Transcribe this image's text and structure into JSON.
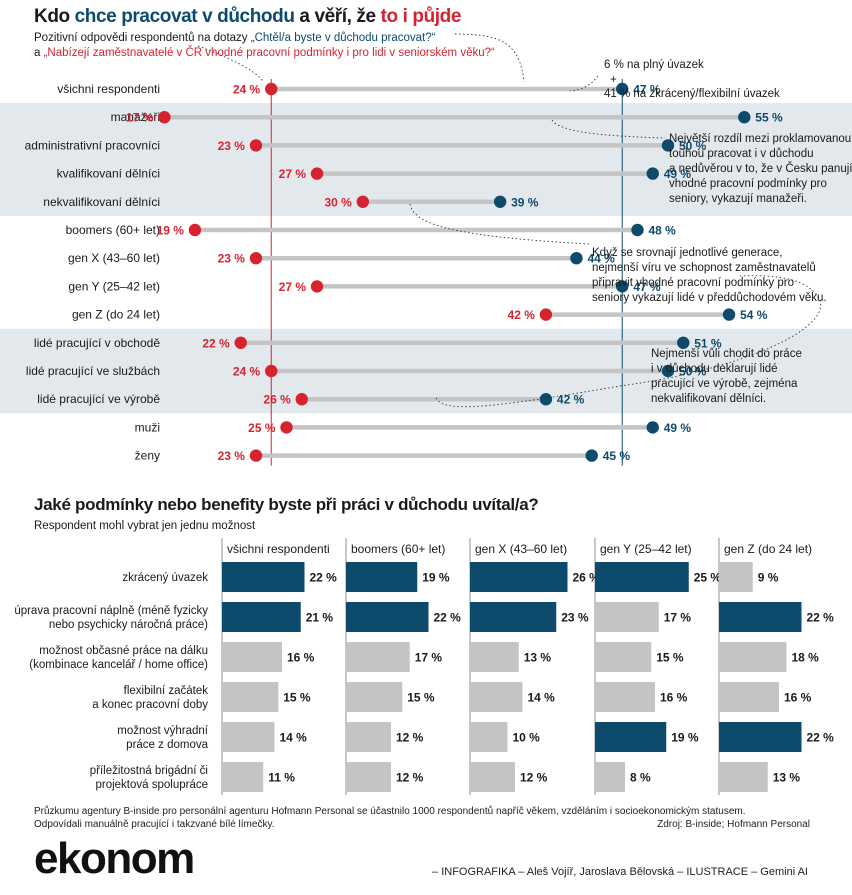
{
  "header": {
    "title_parts": [
      "Kdo ",
      "chce pracovat v důchodu",
      " a věří, že ",
      "to i půjde"
    ],
    "subtitle_line1_prefix": "Pozitivní odpovědi respondentů na dotazy ",
    "subtitle_q1": "„Chtěl/a byste v důchodu pracovat?“",
    "subtitle_line2_prefix": "a ",
    "subtitle_q2": "„Nabízejí zaměstnavatelé v ČR vhodné pracovní podmínky i pro lidi v seniorském věku?“"
  },
  "annotations": {
    "fulltime": [
      "6 % na plný úvazek",
      "+",
      "41 % na zkrácený/flexibilní úvazek"
    ],
    "managers": [
      "Největší rozdíl mezi proklamovanou",
      "touhou pracovat i v důchodu",
      "a nedůvěrou v to, že v Česku panují",
      "vhodné pracovní podmínky pro",
      "seniory, vykazují manažeři."
    ],
    "generations": [
      "Když se srovnají jednotlivé generace,",
      "nejmenší víru ve schopnost zaměstnavatelů",
      "připravit vhodné pracovní podmínky pro",
      "seniory vykazují lidé v předdůchodovém věku."
    ],
    "production": [
      "Nejmenší vůli chodit do práce",
      "i v důchodu deklarují lidé",
      "pracující ve výrobě, zejména",
      "nekvalifikovaní dělníci."
    ]
  },
  "colors": {
    "blue": "#0d4a6b",
    "red": "#d6232f",
    "grey": "#c4c4c4",
    "band": "#e3e8ec"
  },
  "chart_data": [
    {
      "type": "dumbbell",
      "title": "Kdo chce pracovat v důchodu a věří, že to i půjde",
      "unit": "%",
      "series_names": [
        "Nabízejí zaměstnavatelé vhodné podmínky (ano)",
        "Chtěl/a byste v důchodu pracovat (ano)"
      ],
      "rows": [
        {
          "label": "všichni respondenti",
          "red": 24,
          "blue": 47
        },
        {
          "label": "manažeři",
          "red": 17,
          "blue": 55
        },
        {
          "label": "administrativní pracovníci",
          "red": 23,
          "blue": 50
        },
        {
          "label": "kvalifikovaní dělníci",
          "red": 27,
          "blue": 49
        },
        {
          "label": "nekvalifikovaní dělníci",
          "red": 30,
          "blue": 39
        },
        {
          "label": "boomers (60+ let)",
          "red": 19,
          "blue": 48
        },
        {
          "label": "gen X (43–60 let)",
          "red": 23,
          "blue": 44
        },
        {
          "label": "gen Y (25–42 let)",
          "red": 27,
          "blue": 47
        },
        {
          "label": "gen Z (do 24 let)",
          "red": 42,
          "blue": 54
        },
        {
          "label": "lidé pracující v obchodě",
          "red": 22,
          "blue": 51
        },
        {
          "label": "lidé pracující ve službách",
          "red": 24,
          "blue": 50
        },
        {
          "label": "lidé pracující ve výrobě",
          "red": 26,
          "blue": 42
        },
        {
          "label": "muži",
          "red": 25,
          "blue": 49
        },
        {
          "label": "ženy",
          "red": 23,
          "blue": 45
        }
      ]
    },
    {
      "type": "bar",
      "title": "Jaké podmínky nebo benefity byste při práci v důchodu uvítal/a?",
      "subtitle": "Respondent mohl vybrat jen jednu možnost",
      "unit": "%",
      "categories": [
        "zkrácený úvazek",
        "úprava pracovní náplně (méně fyzicky nebo psychicky náročná práce)",
        "možnost občasné práce na dálku (kombinace kancelář / home office)",
        "flexibilní začátek a konec pracovní doby",
        "možnost výhradní práce z domova",
        "příležitostná brigádní či projektová spolupráce"
      ],
      "category_lines": [
        [
          "zkrácený úvazek"
        ],
        [
          "úprava pracovní náplně (méně fyzicky",
          "nebo psychicky náročná práce)"
        ],
        [
          "možnost občasné práce na dálku",
          "(kombinace kancelář / home office)"
        ],
        [
          "flexibilní začátek",
          "a konec pracovní doby"
        ],
        [
          "možnost výhradní",
          "práce z domova"
        ],
        [
          "příležitostná brigádní či",
          "projektová spolupráce"
        ]
      ],
      "series": [
        {
          "name": "všichni respondenti",
          "values": [
            22,
            21,
            16,
            15,
            14,
            11
          ],
          "highlight": [
            true,
            true,
            false,
            false,
            false,
            false
          ]
        },
        {
          "name": "boomers (60+ let)",
          "values": [
            19,
            22,
            17,
            15,
            12,
            12
          ],
          "highlight": [
            true,
            true,
            false,
            false,
            false,
            false
          ]
        },
        {
          "name": "gen X (43–60 let)",
          "values": [
            26,
            23,
            13,
            14,
            10,
            12
          ],
          "highlight": [
            true,
            true,
            false,
            false,
            false,
            false
          ]
        },
        {
          "name": "gen Y (25–42 let)",
          "values": [
            25,
            17,
            15,
            16,
            19,
            8
          ],
          "highlight": [
            true,
            false,
            false,
            false,
            true,
            false
          ]
        },
        {
          "name": "gen Z (do 24 let)",
          "values": [
            9,
            22,
            18,
            16,
            22,
            13
          ],
          "highlight": [
            false,
            true,
            false,
            false,
            true,
            false
          ]
        }
      ]
    }
  ],
  "footer": {
    "note_line1": "Průzkumu agentury B-inside pro personální agenturu Hofmann Personal se účastnilo 1000 respondentů napříč věkem, vzděláním i socioekonomickým statusem.",
    "note_line2": "Odpovídali manuálně pracující i takzvané bílé límečky.",
    "source": "Zdroj: B-inside; Hofmann Personal",
    "brand": "ekonom",
    "credits": "– INFOGRAFIKA –   Aleš Vojíř, Jaroslava Bělovská   – ILUSTRACE – Gemini AI"
  }
}
